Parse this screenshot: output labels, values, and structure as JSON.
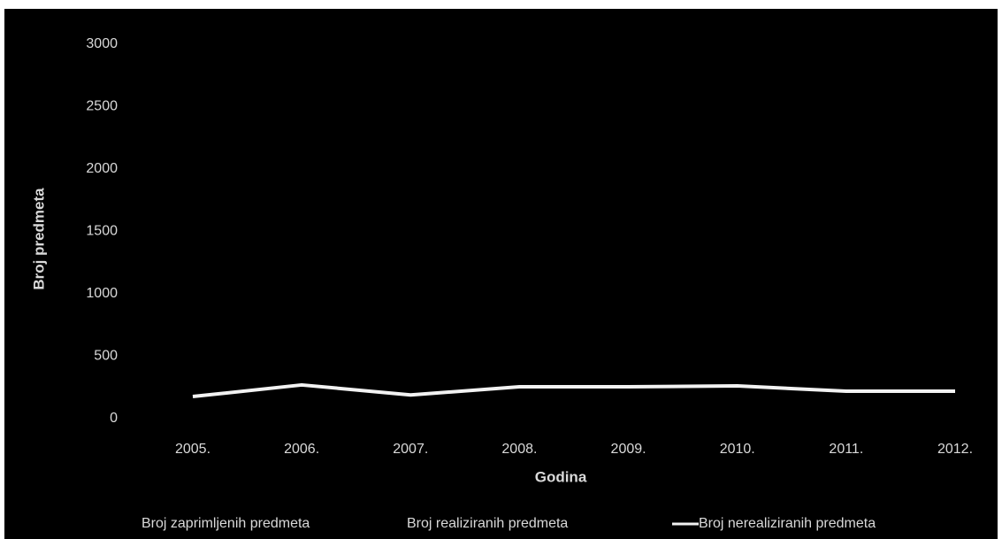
{
  "chart_data": {
    "type": "line",
    "x_label": "Godina",
    "y_label": "Broj predmeta",
    "categories": [
      "2005.",
      "2006.",
      "2007.",
      "2008.",
      "2009.",
      "2010.",
      "2011.",
      "2012."
    ],
    "series": [
      {
        "name": "Broj zaprimljenih predmeta",
        "color": "#000000",
        "values": [
          null,
          null,
          null,
          null,
          null,
          null,
          null,
          null
        ]
      },
      {
        "name": "Broj realiziranih predmeta",
        "color": "#000000",
        "values": [
          null,
          null,
          null,
          null,
          null,
          null,
          null,
          null
        ]
      },
      {
        "name": "Broj nerealiziranih predmeta",
        "color": "#f2f2f2",
        "values": [
          177,
          270,
          190,
          255,
          255,
          262,
          220,
          220
        ]
      }
    ],
    "ylim": [
      0,
      3000
    ],
    "yticks": [
      0,
      500,
      1000,
      1500,
      2000,
      2500,
      3000
    ],
    "grid": false,
    "legend": "bottom"
  }
}
